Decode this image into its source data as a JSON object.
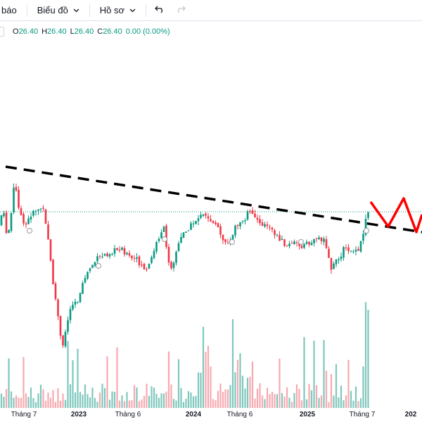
{
  "toolbar": {
    "alert_label": "báo",
    "chart_label": "Biểu đồ",
    "profile_label": "Hồ sơ",
    "undo_icon": "undo-icon",
    "redo_icon": "redo-icon"
  },
  "legend": {
    "o_key": "O",
    "o_val": "26.40",
    "h_key": "H",
    "h_val": "26.40",
    "l_key": "L",
    "l_val": "26.40",
    "c_key": "C",
    "c_val": "26.40",
    "change": "0.00 (0.00%)"
  },
  "colors": {
    "up": "#089981",
    "down": "#f23645",
    "vol_up": "#7fc7bd",
    "vol_down": "#f7a9b0",
    "trendline": "#000000",
    "projection": "#ff0000",
    "price_line": "#089981"
  },
  "x_axis": [
    {
      "label": "Tháng 7",
      "year": false
    },
    {
      "label": "2023",
      "year": true
    },
    {
      "label": "Tháng 6",
      "year": false
    },
    {
      "label": "2024",
      "year": true
    },
    {
      "label": "Tháng 6",
      "year": false
    },
    {
      "label": "2025",
      "year": true
    },
    {
      "label": "Tháng 7",
      "year": false
    },
    {
      "label": "202",
      "year": true
    }
  ],
  "chart_data": {
    "type": "candlestick",
    "last_price": 26.4,
    "annotations": [
      "dashed descending trendline",
      "red zigzag projection"
    ]
  }
}
